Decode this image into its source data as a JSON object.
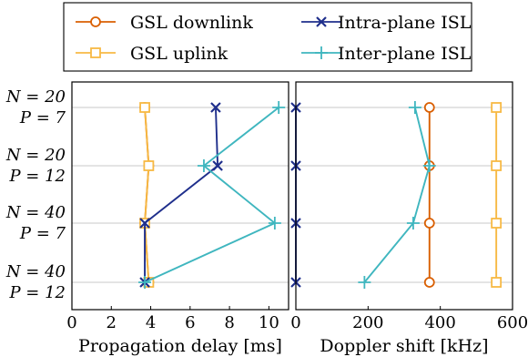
{
  "chart_data": {
    "type": "line",
    "categories": [
      {
        "n": "N = 20",
        "p": "P = 7"
      },
      {
        "n": "N = 20",
        "p": "P = 12"
      },
      {
        "n": "N = 40",
        "p": "P = 7"
      },
      {
        "n": "N = 40",
        "p": "P = 12"
      }
    ],
    "legend": {
      "placement": "top-center",
      "entries": [
        {
          "name": "GSL downlink",
          "color": "#d95f02",
          "marker": "circle"
        },
        {
          "name": "Intra-plane ISL",
          "color": "#1f2f8c",
          "marker": "x"
        },
        {
          "name": "GSL uplink",
          "color": "#f7b944",
          "marker": "square"
        },
        {
          "name": "Inter-plane ISL",
          "color": "#3fb6bf",
          "marker": "plus"
        }
      ]
    },
    "panels": [
      {
        "xlabel": "Propagation delay [ms]",
        "xlim": [
          0,
          11
        ],
        "xticks": [
          0,
          2,
          4,
          6,
          8,
          10
        ],
        "grid": "horizontal",
        "series": [
          {
            "name": "GSL downlink",
            "color": "#d95f02",
            "marker": "circle",
            "values": [
              3.7,
              3.9,
              3.7,
              3.9
            ]
          },
          {
            "name": "GSL uplink",
            "color": "#f7b944",
            "marker": "square",
            "values": [
              3.7,
              3.9,
              3.7,
              3.9
            ]
          },
          {
            "name": "Intra-plane ISL",
            "color": "#1f2f8c",
            "marker": "x",
            "values": [
              7.3,
              7.4,
              3.7,
              3.7
            ]
          },
          {
            "name": "Inter-plane ISL",
            "color": "#3fb6bf",
            "marker": "plus",
            "values": [
              10.5,
              6.7,
              10.3,
              3.7
            ]
          }
        ]
      },
      {
        "xlabel": "Doppler shift [kHz]",
        "xlim": [
          0,
          600
        ],
        "xticks": [
          0,
          200,
          400,
          600
        ],
        "grid": "horizontal",
        "series": [
          {
            "name": "GSL downlink",
            "color": "#d95f02",
            "marker": "circle",
            "values": [
              370,
              370,
              370,
              370
            ]
          },
          {
            "name": "GSL uplink",
            "color": "#f7b944",
            "marker": "square",
            "values": [
              555,
              555,
              555,
              555
            ]
          },
          {
            "name": "Intra-plane ISL",
            "color": "#1f2f8c",
            "marker": "x",
            "values": [
              0,
              0,
              0,
              0
            ]
          },
          {
            "name": "Inter-plane ISL",
            "color": "#3fb6bf",
            "marker": "plus",
            "values": [
              330,
              370,
              325,
              190
            ]
          }
        ]
      }
    ]
  }
}
